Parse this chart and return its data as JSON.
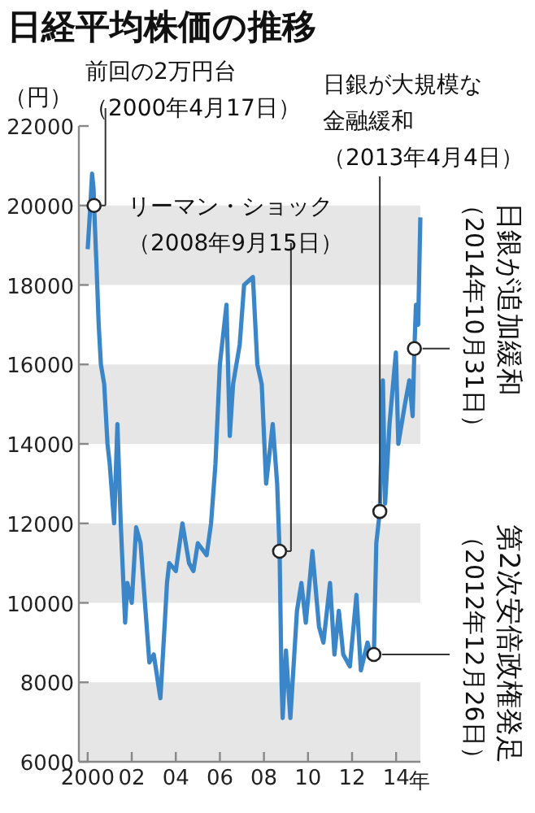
{
  "chart_data": {
    "type": "line",
    "title": "日経平均株価の推移",
    "ylabel": "（円）",
    "x": [
      2000.0,
      2000.1,
      2000.2,
      2000.27,
      2000.29,
      2000.4,
      2000.5,
      2000.6,
      2000.75,
      2000.9,
      2001.0,
      2001.2,
      2001.35,
      2001.5,
      2001.7,
      2001.8,
      2002.0,
      2002.2,
      2002.4,
      2002.6,
      2002.8,
      2003.0,
      2003.3,
      2003.5,
      2003.6,
      2003.7,
      2004.0,
      2004.3,
      2004.6,
      2004.8,
      2005.0,
      2005.4,
      2005.6,
      2005.8,
      2006.0,
      2006.3,
      2006.45,
      2006.6,
      2006.9,
      2007.1,
      2007.5,
      2007.7,
      2007.9,
      2008.1,
      2008.4,
      2008.6,
      2008.71,
      2008.8,
      2008.85,
      2009.0,
      2009.2,
      2009.5,
      2009.7,
      2009.9,
      2010.2,
      2010.5,
      2010.7,
      2011.0,
      2011.2,
      2011.4,
      2011.6,
      2011.9,
      2012.2,
      2012.4,
      2012.7,
      2012.85,
      2012.99,
      2013.1,
      2013.26,
      2013.4,
      2013.5,
      2013.7,
      2013.99,
      2014.1,
      2014.4,
      2014.6,
      2014.75,
      2014.83,
      2014.9,
      2015.0,
      2015.1
    ],
    "series": [
      {
        "color": "#3a86c8",
        "values": [
          18900,
          19800,
          20800,
          20400,
          20000,
          18500,
          17000,
          16000,
          15500,
          14000,
          13500,
          12000,
          14500,
          12000,
          9500,
          10500,
          10000,
          11900,
          11500,
          10000,
          8500,
          8700,
          7600,
          9500,
          10500,
          11000,
          10800,
          12000,
          11000,
          10800,
          11500,
          11200,
          12000,
          13500,
          16000,
          17500,
          14200,
          15500,
          16500,
          18000,
          18200,
          16000,
          15500,
          13000,
          14500,
          13000,
          11300,
          8000,
          7100,
          8800,
          7100,
          9800,
          10500,
          9500,
          11300,
          9400,
          9000,
          10500,
          8700,
          9800,
          8700,
          8400,
          10200,
          8300,
          9000,
          8700,
          8700,
          11500,
          12300,
          15600,
          12500,
          14500,
          16300,
          14000,
          15000,
          15600,
          14700,
          16400,
          17500,
          17000,
          19700
        ]
      }
    ],
    "xlim": [
      1999.6,
      2015.1
    ],
    "ylim": [
      6000,
      22000
    ],
    "xticks": [
      {
        "value": 2000,
        "label": "2000"
      },
      {
        "value": 2002,
        "label": "02"
      },
      {
        "value": 2004,
        "label": "04"
      },
      {
        "value": 2006,
        "label": "06"
      },
      {
        "value": 2008,
        "label": "08"
      },
      {
        "value": 2010,
        "label": "10"
      },
      {
        "value": 2012,
        "label": "12"
      },
      {
        "value": 2014,
        "label": "14"
      }
    ],
    "xlabel": "年",
    "yticks": [
      6000,
      8000,
      10000,
      12000,
      14000,
      16000,
      18000,
      20000,
      22000
    ],
    "grid": false,
    "bands": [
      {
        "axis": "y",
        "from": 6000,
        "to": 8000,
        "color": "#e6e6e6"
      },
      {
        "axis": "y",
        "from": 10000,
        "to": 12000,
        "color": "#e6e6e6"
      },
      {
        "axis": "y",
        "from": 14000,
        "to": 16000,
        "color": "#e6e6e6"
      },
      {
        "axis": "y",
        "from": 18000,
        "to": 20000,
        "color": "#e6e6e6"
      }
    ],
    "annotations": [
      {
        "text": "前回の2万円台（2000年4月17日）",
        "x": 2000.29,
        "y": 20000
      },
      {
        "text": "リーマン・ショック（2008年9月15日）",
        "x": 2008.71,
        "y": 11300
      },
      {
        "text": "日銀が大規模な金融緩和（2013年4月4日）",
        "x": 2013.26,
        "y": 12300
      },
      {
        "text": "日銀が追加緩和（2014年10月31日）",
        "x": 2014.83,
        "y": 16400
      },
      {
        "text": "第2次安倍政権発足（2012年12月26日）",
        "x": 2012.99,
        "y": 8700
      }
    ]
  }
}
